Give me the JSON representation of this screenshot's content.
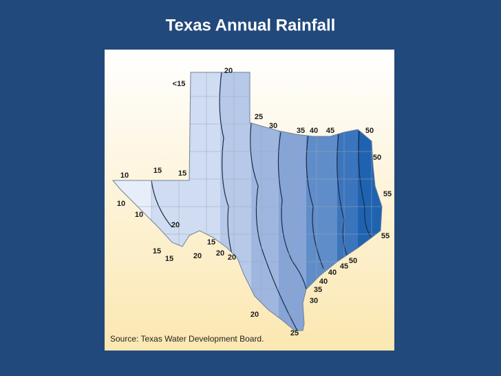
{
  "title": "Texas Annual Rainfall",
  "map": {
    "labels": [
      "20",
      "<15",
      "25",
      "30",
      "35",
      "40",
      "45",
      "50",
      "50",
      "15",
      "15",
      "10",
      "55",
      "10",
      "10",
      "20",
      "55",
      "15",
      "15",
      "20",
      "20",
      "15",
      "20",
      "50",
      "45",
      "40",
      "40",
      "35",
      "30",
      "20",
      "25"
    ],
    "source": "Source: Texas Water Development Board."
  }
}
